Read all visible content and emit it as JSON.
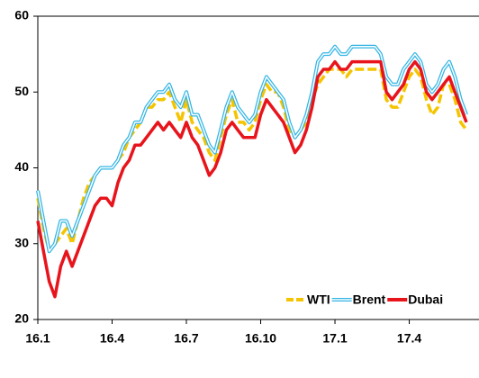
{
  "chart_data": {
    "type": "line",
    "categories": [
      "16.1",
      null,
      null,
      null,
      null,
      null,
      null,
      null,
      null,
      null,
      null,
      null,
      null,
      "16.4",
      null,
      null,
      null,
      null,
      null,
      null,
      null,
      null,
      null,
      null,
      null,
      null,
      "16.7",
      null,
      null,
      null,
      null,
      null,
      null,
      null,
      null,
      null,
      null,
      null,
      null,
      "16.10",
      null,
      null,
      null,
      null,
      null,
      null,
      null,
      null,
      null,
      null,
      null,
      null,
      "17.1",
      null,
      null,
      null,
      null,
      null,
      null,
      null,
      null,
      null,
      null,
      null,
      null,
      "17.4",
      null,
      null,
      null,
      null,
      null,
      null,
      null,
      null,
      null,
      null
    ],
    "series": [
      {
        "name": "WTI",
        "color": "#f5c400",
        "style": "dashed",
        "values": [
          36,
          32,
          29,
          30,
          31,
          32,
          30,
          33,
          36,
          38,
          39,
          40,
          40,
          40,
          41,
          42,
          44,
          45,
          46,
          48,
          48,
          49,
          49,
          50,
          48,
          46,
          49,
          46,
          45,
          44,
          42,
          41,
          44,
          47,
          49,
          46,
          46,
          45,
          46,
          49,
          51,
          50,
          50,
          48,
          45,
          44,
          45,
          46,
          49,
          51,
          52,
          53,
          53,
          53,
          52,
          53,
          53,
          53,
          53,
          53,
          53,
          49,
          48,
          48,
          50,
          52,
          53,
          52,
          49,
          47,
          48,
          51,
          51,
          49,
          46,
          45
        ]
      },
      {
        "name": "Brent",
        "color": "#33b5e5",
        "style": "double",
        "values": [
          37,
          33,
          29,
          30,
          33,
          33,
          31,
          33,
          35,
          37,
          39,
          40,
          40,
          40,
          41,
          43,
          44,
          46,
          46,
          48,
          49,
          50,
          50,
          51,
          49,
          48,
          50,
          47,
          47,
          45,
          43,
          42,
          45,
          48,
          50,
          48,
          47,
          46,
          47,
          50,
          52,
          51,
          50,
          49,
          46,
          44,
          45,
          47,
          50,
          54,
          55,
          55,
          56,
          55,
          55,
          56,
          56,
          56,
          56,
          56,
          55,
          52,
          51,
          51,
          53,
          54,
          55,
          54,
          51,
          50,
          51,
          53,
          54,
          52,
          49,
          47
        ]
      },
      {
        "name": "Dubai",
        "color": "#e8141c",
        "style": "solid",
        "values": [
          33,
          29,
          25,
          23,
          27,
          29,
          27,
          29,
          31,
          33,
          35,
          36,
          36,
          35,
          38,
          40,
          41,
          43,
          43,
          44,
          45,
          46,
          45,
          46,
          45,
          44,
          46,
          44,
          43,
          41,
          39,
          40,
          42,
          45,
          46,
          45,
          44,
          44,
          44,
          47,
          49,
          48,
          47,
          46,
          44,
          42,
          43,
          45,
          48,
          52,
          53,
          53,
          54,
          53,
          53,
          54,
          54,
          54,
          54,
          54,
          54,
          50,
          49,
          50,
          51,
          53,
          54,
          53,
          50,
          49,
          50,
          51,
          52,
          50,
          48,
          46
        ]
      }
    ],
    "ylim": [
      20,
      60
    ],
    "yticks": [
      20,
      30,
      40,
      50,
      60
    ],
    "grid": false,
    "legend": "lower right"
  }
}
